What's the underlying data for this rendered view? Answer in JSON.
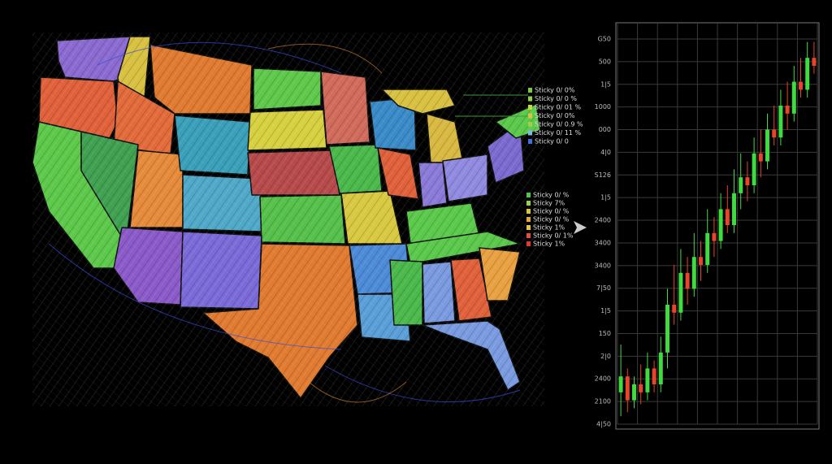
{
  "map_legend": {
    "upper": [
      "Sticky 0/ 0%",
      "Sticky 0/ 0 %",
      "Sticky 0/ 01 %",
      "Sticky 0/ 0%",
      "Sticky 0/ 0.9 %",
      "Sticky 0/ 11 %",
      "Sticky 0/ 0"
    ],
    "upper_colors": [
      "#7ac943",
      "#8fd14f",
      "#c7d93a",
      "#e0c040",
      "#9bd04a",
      "#7fb7e0",
      "#3f6fd8"
    ],
    "lower": [
      "Sticky 0/ %",
      "Sticky 7%",
      "Sticky 0/ %",
      "Sticky 0/ %",
      "Sticky 1%",
      "Sticky 0/ 1%",
      "Sticky 1%"
    ],
    "lower_colors": [
      "#4cc94a",
      "#9bd04a",
      "#d9c43a",
      "#e8a53a",
      "#e8c43a",
      "#e0503a",
      "#e03a2a"
    ]
  },
  "candle_chart": {
    "y_labels": [
      "G50",
      "500",
      "1|5",
      "1000",
      "000",
      "4|0",
      "S126",
      "1|5",
      "2400",
      "3400",
      "3400",
      "7|50",
      "1|5",
      "150",
      "2|0",
      "2400",
      "2100",
      "4|50"
    ],
    "ylim": [
      0,
      100
    ],
    "up_color": "#3fdc3f",
    "down_color": "#e8452a",
    "candles": [
      {
        "o": 8,
        "c": 12,
        "h": 20,
        "l": 2
      },
      {
        "o": 12,
        "c": 6,
        "h": 14,
        "l": 3
      },
      {
        "o": 6,
        "c": 10,
        "h": 12,
        "l": 4
      },
      {
        "o": 10,
        "c": 8,
        "h": 15,
        "l": 5
      },
      {
        "o": 8,
        "c": 14,
        "h": 18,
        "l": 6
      },
      {
        "o": 14,
        "c": 10,
        "h": 16,
        "l": 8
      },
      {
        "o": 10,
        "c": 18,
        "h": 22,
        "l": 8
      },
      {
        "o": 18,
        "c": 30,
        "h": 34,
        "l": 14
      },
      {
        "o": 30,
        "c": 28,
        "h": 40,
        "l": 25
      },
      {
        "o": 28,
        "c": 38,
        "h": 44,
        "l": 26
      },
      {
        "o": 38,
        "c": 34,
        "h": 42,
        "l": 30
      },
      {
        "o": 34,
        "c": 42,
        "h": 48,
        "l": 32
      },
      {
        "o": 42,
        "c": 40,
        "h": 46,
        "l": 36
      },
      {
        "o": 40,
        "c": 48,
        "h": 54,
        "l": 38
      },
      {
        "o": 48,
        "c": 46,
        "h": 52,
        "l": 42
      },
      {
        "o": 46,
        "c": 54,
        "h": 58,
        "l": 44
      },
      {
        "o": 54,
        "c": 50,
        "h": 60,
        "l": 48
      },
      {
        "o": 50,
        "c": 58,
        "h": 64,
        "l": 48
      },
      {
        "o": 58,
        "c": 62,
        "h": 68,
        "l": 54
      },
      {
        "o": 62,
        "c": 60,
        "h": 66,
        "l": 56
      },
      {
        "o": 60,
        "c": 68,
        "h": 72,
        "l": 58
      },
      {
        "o": 68,
        "c": 66,
        "h": 74,
        "l": 62
      },
      {
        "o": 66,
        "c": 74,
        "h": 78,
        "l": 64
      },
      {
        "o": 74,
        "c": 72,
        "h": 80,
        "l": 70
      },
      {
        "o": 72,
        "c": 80,
        "h": 84,
        "l": 70
      },
      {
        "o": 80,
        "c": 78,
        "h": 86,
        "l": 74
      },
      {
        "o": 78,
        "c": 86,
        "h": 90,
        "l": 76
      },
      {
        "o": 86,
        "c": 84,
        "h": 92,
        "l": 82
      },
      {
        "o": 84,
        "c": 92,
        "h": 96,
        "l": 82
      },
      {
        "o": 92,
        "c": 90,
        "h": 96,
        "l": 88
      }
    ]
  }
}
